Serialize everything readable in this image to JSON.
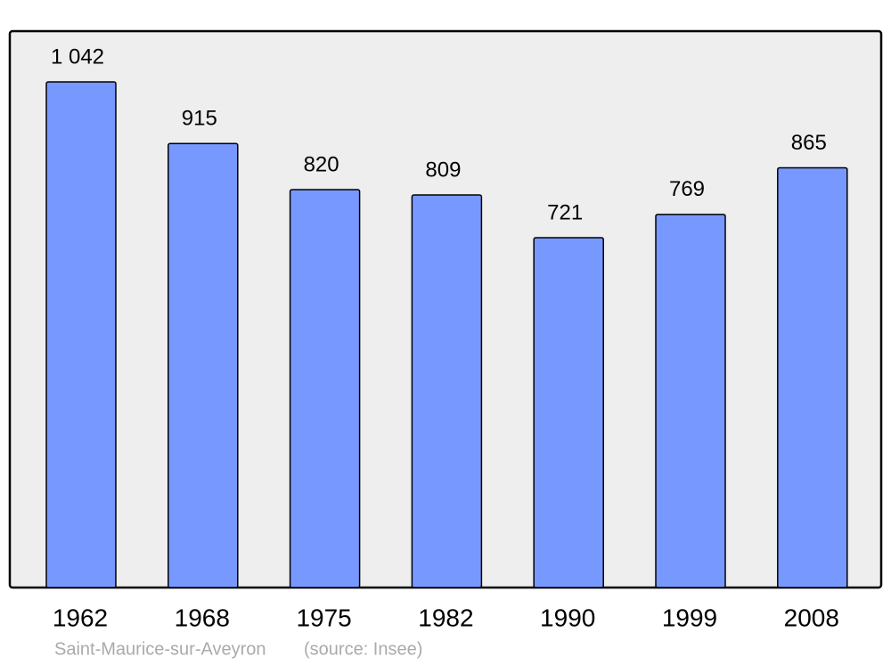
{
  "chart_data": {
    "type": "bar",
    "categories": [
      "1962",
      "1968",
      "1975",
      "1982",
      "1990",
      "1999",
      "2008"
    ],
    "values": [
      1042,
      915,
      820,
      809,
      721,
      769,
      865
    ],
    "value_labels": [
      "1 042",
      "915",
      "820",
      "809",
      "721",
      "769",
      "865"
    ],
    "color": "#7799ff",
    "caption": "Saint-Maurice-sur-Aveyron",
    "source": "(source: Insee)"
  }
}
